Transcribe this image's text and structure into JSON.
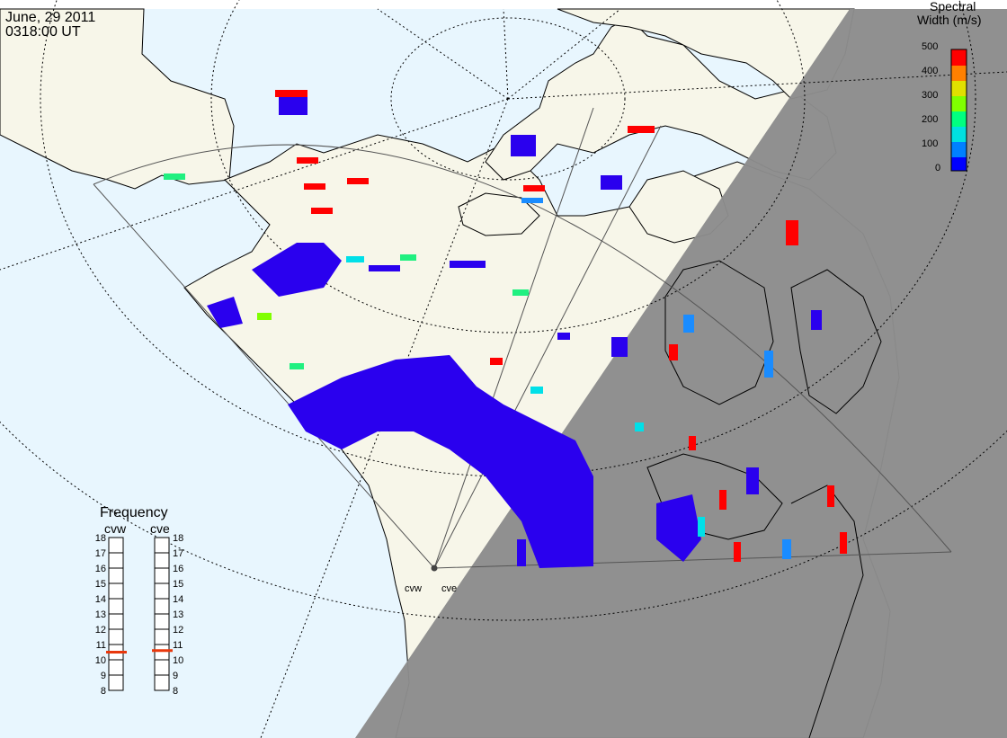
{
  "header": {
    "date": "June, 29 2011",
    "time": "0318:00 UT"
  },
  "colorbar": {
    "title_line1": "Spectral",
    "title_line2": "Width (m/s)",
    "ticks": [
      "500",
      "400",
      "300",
      "200",
      "100",
      "0"
    ],
    "colors": [
      "#0000ff",
      "#0080ff",
      "#00e0e0",
      "#00ff80",
      "#80ff00",
      "#e0e000",
      "#ff8000",
      "#ff0000"
    ]
  },
  "frequency": {
    "title": "Frequency",
    "radars": [
      {
        "label": "cvw",
        "value_mhz": 10.5
      },
      {
        "label": "cve",
        "value_mhz": 10.6
      }
    ],
    "scale": [
      "18",
      "17",
      "16",
      "15",
      "14",
      "13",
      "12",
      "11",
      "10",
      "9",
      "8"
    ]
  },
  "radar_sites": {
    "west_label": "cvw",
    "east_label": "cve"
  },
  "colors": {
    "ocean": "#e8f6fe",
    "land": "#f7f6e9",
    "night": "#8c8c8c",
    "coast": "#000000",
    "low_width": "#2a00ee",
    "mid_width": "#1a8cff",
    "cyan_width": "#00e0e8",
    "green_width": "#20f080",
    "high_width": "#ff0000"
  }
}
